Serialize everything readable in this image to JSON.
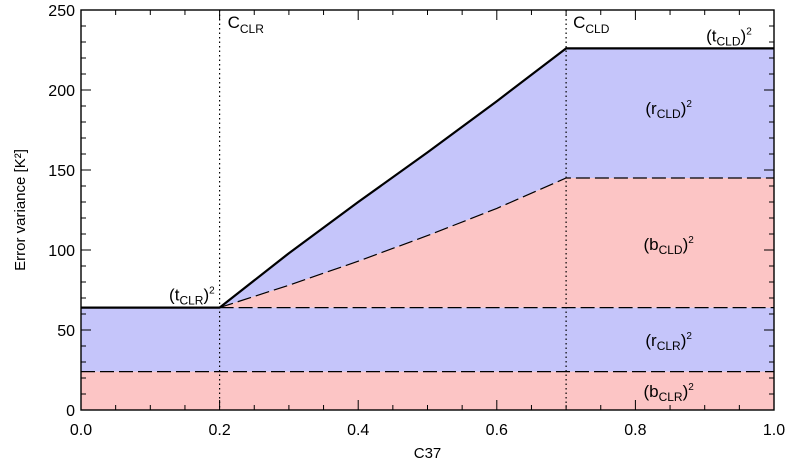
{
  "chart_data": {
    "type": "area",
    "xlabel": "C37",
    "ylabel": "Error variance [K²]",
    "xlim": [
      0.0,
      1.0
    ],
    "ylim": [
      0,
      250
    ],
    "xticks": [
      0.0,
      0.2,
      0.4,
      0.6,
      0.8,
      1.0
    ],
    "xtick_labels": [
      "0.0",
      "0.2",
      "0.4",
      "0.6",
      "0.8",
      "1.0"
    ],
    "yticks": [
      0,
      50,
      100,
      150,
      200,
      250
    ],
    "ytick_labels": [
      "0",
      "50",
      "100",
      "150",
      "200",
      "250"
    ],
    "grid": false,
    "legend": "none",
    "thresholds": {
      "c_clr": 0.2,
      "c_cld": 0.7
    },
    "levels": {
      "b_clr_sq": 24,
      "t_clr_sq": 64,
      "b_cld_sq": 145,
      "t_cld_sq": 226
    },
    "curves": {
      "total": {
        "x": [
          0.0,
          0.2,
          0.3,
          0.4,
          0.5,
          0.6,
          0.7,
          1.0
        ],
        "y": [
          64,
          64,
          98,
          130,
          161,
          193,
          226,
          226
        ]
      },
      "bias": {
        "x": [
          0.2,
          0.3,
          0.4,
          0.5,
          0.6,
          0.7,
          1.0
        ],
        "y": [
          64,
          78,
          93,
          109,
          126,
          145,
          145
        ]
      }
    },
    "colors": {
      "random_fill": "#c5c5fa",
      "bias_fill": "#fcc5c5",
      "line": "#000000"
    },
    "annotations": {
      "c_clr": {
        "main": "C",
        "sub": "CLR"
      },
      "c_cld": {
        "main": "C",
        "sub": "CLD"
      },
      "t_clr": {
        "open": "(t",
        "sub": "CLR",
        "close": ")",
        "sup": "2"
      },
      "t_cld": {
        "open": "(t",
        "sub": "CLD",
        "close": ")",
        "sup": "2"
      },
      "r_cld": {
        "open": "(r",
        "sub": "CLD",
        "close": ")",
        "sup": "2"
      },
      "b_cld": {
        "open": "(b",
        "sub": "CLD",
        "close": ")",
        "sup": "2"
      },
      "r_clr": {
        "open": "(r",
        "sub": "CLR",
        "close": ")",
        "sup": "2"
      },
      "b_clr": {
        "open": "(b",
        "sub": "CLR",
        "close": ")",
        "sup": "2"
      }
    }
  }
}
